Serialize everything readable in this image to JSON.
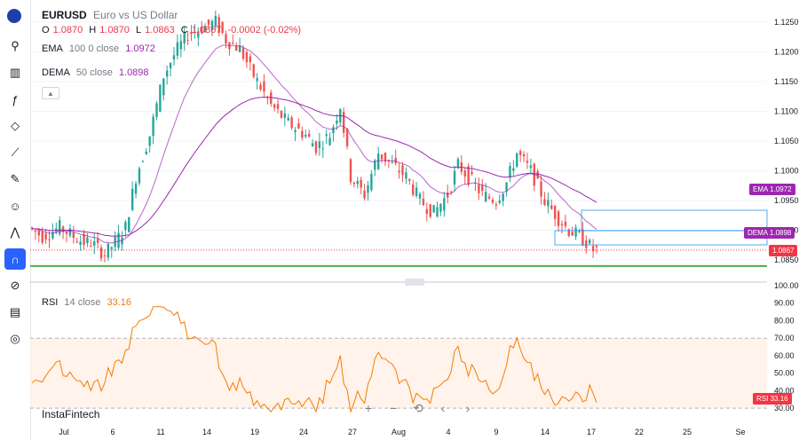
{
  "header": {
    "symbol": "EURUSD",
    "description": "Euro vs US Dollar",
    "ohlc": {
      "o_label": "O",
      "o": "1.0870",
      "h_label": "H",
      "h": "1.0870",
      "l_label": "L",
      "l": "1.0863",
      "c_label": "C",
      "c": "1.0867",
      "change": "-0.0002 (-0.02%)"
    },
    "ema": {
      "name": "EMA",
      "params": "100 0 close",
      "value": "1.0972"
    },
    "dema": {
      "name": "DEMA",
      "params": "50 close",
      "value": "1.0898"
    },
    "rsi": {
      "name": "RSI",
      "params": "14 close",
      "value": "33.16"
    }
  },
  "brand": "InstaFintech",
  "toolbar": {
    "icons": [
      "flag-icon",
      "cursor-icon",
      "candles-icon",
      "fx-icon",
      "pattern-icon",
      "trend-icon",
      "brush-icon",
      "smiley-icon",
      "wave-icon",
      "magnet-icon",
      "eye-icon",
      "trash-icon",
      "camera-icon"
    ]
  },
  "zoom_controls": [
    "+",
    "−",
    "⟲",
    "‹",
    "›"
  ],
  "colors": {
    "up": "#26a69a",
    "down": "#ef5350",
    "ema": "#9c27b0",
    "dema": "#9c27b0",
    "rsi": "#f57c00",
    "support": "#4caf50",
    "price": "#f23645",
    "box": "#2196f3"
  },
  "chart_data": [
    {
      "type": "candlestick",
      "ylim": [
        1.0825,
        1.1275
      ],
      "y_ticks": [
        "1.0850",
        "1.0900",
        "1.0950",
        "1.1000",
        "1.1050",
        "1.1100",
        "1.1150",
        "1.1200",
        "1.1250"
      ],
      "x_ticks": [
        "Jul",
        "6",
        "11",
        "14",
        "19",
        "24",
        "27",
        "Aug",
        "4",
        "9",
        "14",
        "17",
        "22",
        "25",
        "Se"
      ],
      "price_tags": [
        {
          "label": "EMA",
          "value": "1.0972"
        },
        {
          "label": "DEMA",
          "value": "1.0898"
        },
        {
          "label": "",
          "value": "1.0867"
        }
      ],
      "support_level": 1.084,
      "current_price": 1.0867
    },
    {
      "type": "line",
      "ylim": [
        25,
        100
      ],
      "y_ticks": [
        "100.00",
        "90.00",
        "80.00",
        "70.00",
        "60.00",
        "50.00",
        "40.00",
        "30.00"
      ],
      "overbought": 70,
      "oversold": 30,
      "current_value": 33.16,
      "value_tag": {
        "label": "RSI",
        "value": "33.16"
      }
    }
  ]
}
